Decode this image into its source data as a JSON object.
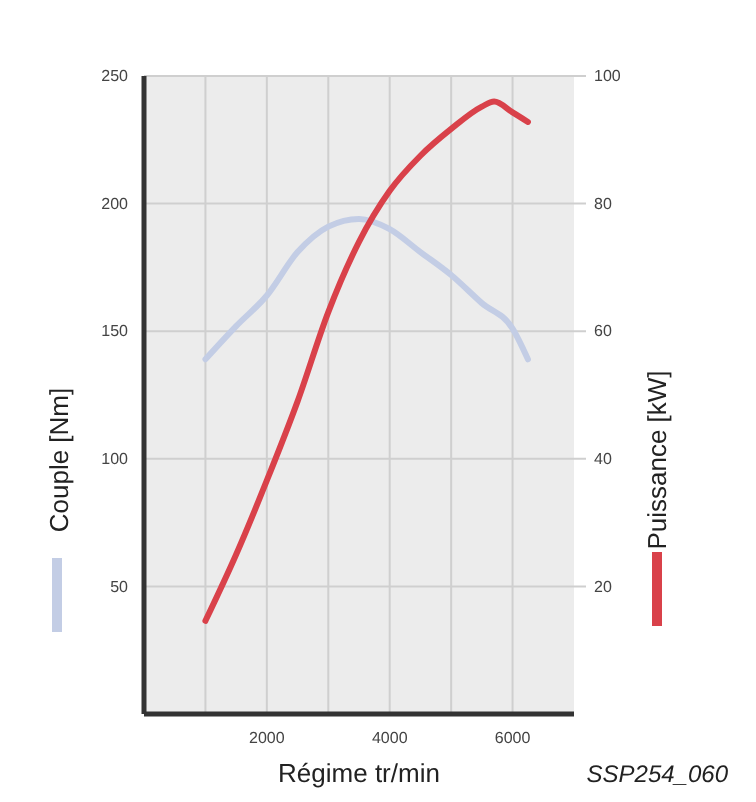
{
  "chart_data": {
    "type": "line",
    "xlabel": "Régime tr/min",
    "ylabel": "Couple [Nm]",
    "y2label": "Puissance [kW]",
    "annotations": [
      "SSP254_060"
    ],
    "x": [
      1000,
      1500,
      2000,
      2500,
      3000,
      3500,
      4000,
      4500,
      5000,
      5500,
      5700,
      6000,
      6250
    ],
    "series": [
      {
        "color": "#c3cde5",
        "x": [
          1000,
          1500,
          2000,
          2500,
          3000,
          3500,
          4000,
          4500,
          5000,
          5500,
          6000,
          6250
        ],
        "values": [
          139,
          152,
          164,
          181,
          191,
          194,
          190,
          181,
          172,
          161,
          151,
          139
        ]
      },
      {
        "color": "#d9414a",
        "axis": "y2",
        "values": [
          14.6,
          25,
          36.6,
          49,
          63,
          74,
          82,
          87.5,
          91.7,
          95.2,
          96,
          94.3,
          92.8
        ]
      }
    ],
    "xlim": [
      0,
      7000
    ],
    "xticks": [
      {
        "value": 1000,
        "label": null
      },
      2000,
      {
        "value": 3000,
        "label": null
      },
      4000,
      {
        "value": 5000,
        "label": null
      },
      6000
    ],
    "ylim": [
      0,
      250
    ],
    "yticks": [
      50,
      100,
      150,
      200,
      250
    ],
    "y2lim": [
      0,
      100
    ],
    "y2ticks": [
      20,
      40,
      60,
      80,
      100
    ],
    "grid": true,
    "marker": "none",
    "line_style": "solid"
  }
}
